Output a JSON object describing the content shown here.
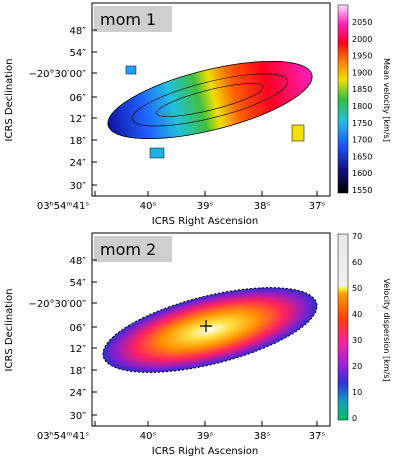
{
  "panels": [
    {
      "label": "mom 1",
      "ylabel": "ICRS Declination",
      "xlabel": "ICRS Right Ascension",
      "yticks": [
        "48″",
        "54″",
        "−20°30′00″",
        "06″",
        "12″",
        "18″",
        "24″",
        "30″"
      ],
      "xticks": [
        "03ʰ54ᵐ41ˢ",
        "40ˢ",
        "39ˢ",
        "38ˢ",
        "37ˢ"
      ],
      "colorbar_label": "Mean velocity [km/s]",
      "colorbar_ticks": [
        "1550",
        "1600",
        "1650",
        "1700",
        "1750",
        "1800",
        "1850",
        "1900",
        "1950",
        "2000",
        "2050"
      ]
    },
    {
      "label": "mom 2",
      "ylabel": "ICRS Declination",
      "xlabel": "ICRS Right Ascension",
      "yticks": [
        "48″",
        "54″",
        "−20°30′00″",
        "06″",
        "12″",
        "18″",
        "24″",
        "30″"
      ],
      "xticks": [
        "03ʰ54ᵐ41ˢ",
        "40ˢ",
        "39ˢ",
        "38ˢ",
        "37ˢ"
      ],
      "colorbar_label": "Velocity dispersion [km/s]",
      "colorbar_ticks": [
        "0",
        "10",
        "20",
        "30",
        "40",
        "50",
        "60",
        "70"
      ]
    }
  ]
}
